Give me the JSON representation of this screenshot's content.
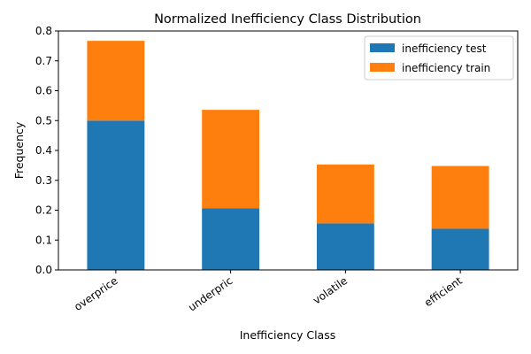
{
  "chart_data": {
    "type": "bar",
    "stacked": true,
    "title": "Normalized Inefficiency Class Distribution",
    "xlabel": "Inefficiency Class",
    "ylabel": "Frequency",
    "categories": [
      "overprice",
      "underpric",
      "volatile",
      "efficient"
    ],
    "series": [
      {
        "name": "inefficiency test",
        "color": "#1f77b4",
        "values": [
          0.5,
          0.206,
          0.156,
          0.138
        ]
      },
      {
        "name": "inefficiency train",
        "color": "#ff7f0e",
        "values": [
          0.267,
          0.33,
          0.197,
          0.21
        ]
      }
    ],
    "ylim": [
      0,
      0.8
    ],
    "yticks": [
      "0.0",
      "0.1",
      "0.2",
      "0.3",
      "0.4",
      "0.5",
      "0.6",
      "0.7",
      "0.8"
    ],
    "grid": false,
    "legend_position": "top-right"
  }
}
